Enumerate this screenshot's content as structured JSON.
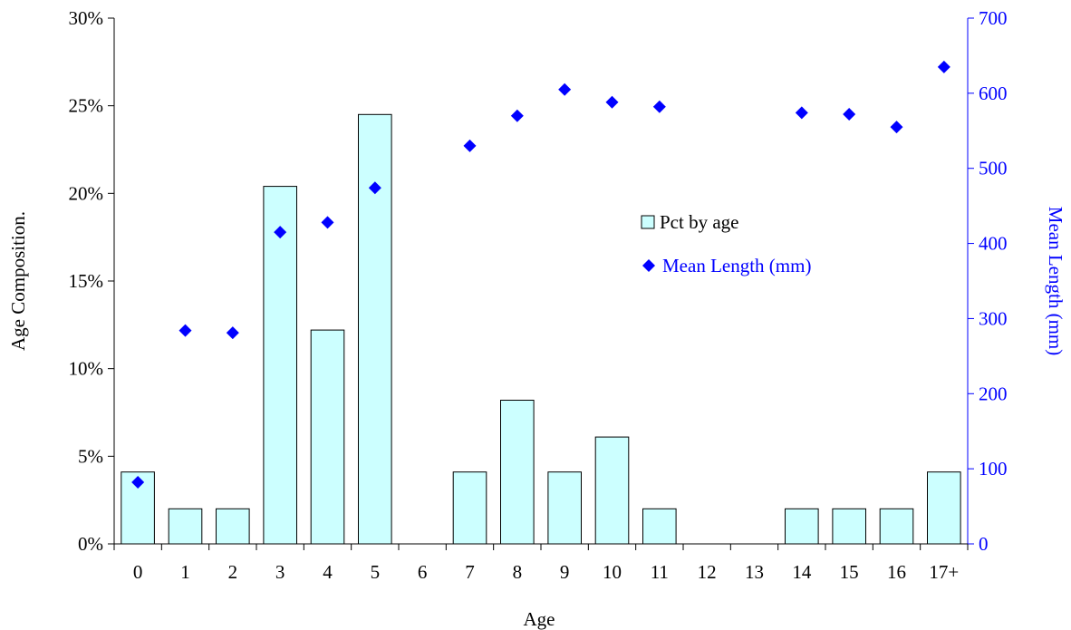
{
  "colors": {
    "bar_fill": "#ccffff",
    "bar_stroke": "#000000",
    "marker": "#0000ff",
    "right_axis": "#0000ff",
    "left_axis": "#000000"
  },
  "legend": {
    "bar_label": "Pct by age",
    "marker_label": "Mean Length (mm)"
  },
  "chart_data": {
    "type": "bar",
    "xlabel": "Age",
    "ylabel": "Age Composition.",
    "y2label": "Mean Length (mm)",
    "categories": [
      "0",
      "1",
      "2",
      "3",
      "4",
      "5",
      "6",
      "7",
      "8",
      "9",
      "10",
      "11",
      "12",
      "13",
      "14",
      "15",
      "16",
      "17+"
    ],
    "ylim": [
      0,
      30
    ],
    "y_ticks": [
      "0%",
      "5%",
      "10%",
      "15%",
      "20%",
      "25%",
      "30%"
    ],
    "y2lim": [
      0,
      700
    ],
    "y2_ticks": [
      "0",
      "100",
      "200",
      "300",
      "400",
      "500",
      "600",
      "700"
    ],
    "grid": false,
    "legend_position": "center-right",
    "series": [
      {
        "name": "Pct by age",
        "type": "bar",
        "axis": "left",
        "values": [
          4.1,
          2.0,
          2.0,
          20.4,
          12.2,
          24.5,
          0,
          4.1,
          8.2,
          4.1,
          6.1,
          2.0,
          0,
          0,
          2.0,
          2.0,
          2.0,
          4.1
        ]
      },
      {
        "name": "Mean Length (mm)",
        "type": "scatter",
        "axis": "right",
        "values": [
          82,
          284,
          281,
          415,
          428,
          474,
          null,
          530,
          570,
          605,
          588,
          582,
          null,
          null,
          574,
          572,
          555,
          635
        ]
      }
    ]
  }
}
